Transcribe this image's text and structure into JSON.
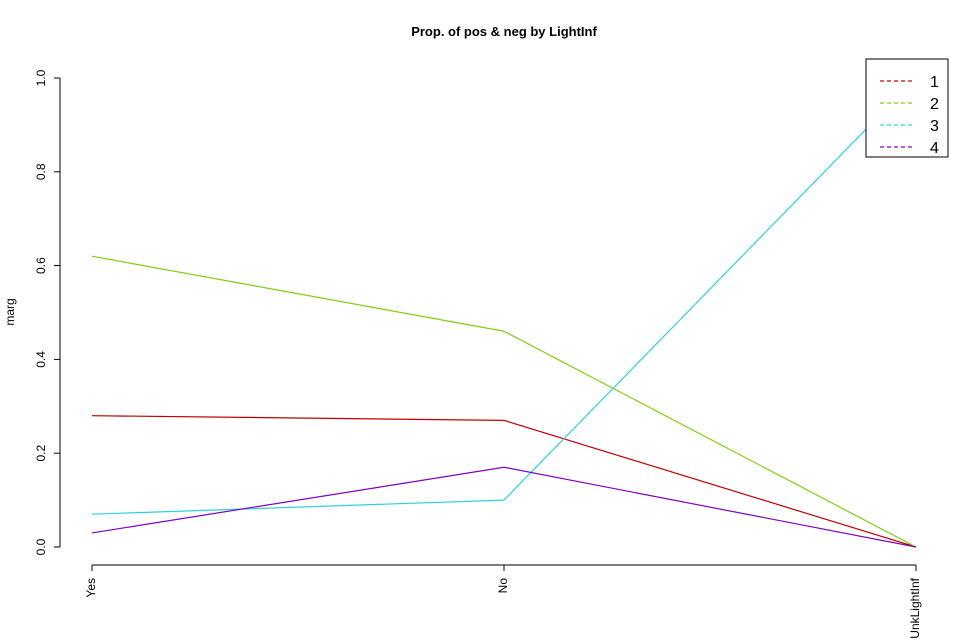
{
  "chart_data": {
    "type": "line",
    "title": "Prop. of pos & neg by LightInf",
    "xlabel": "",
    "ylabel": "marg",
    "categories": [
      "Yes",
      "No",
      "UnkLightInf"
    ],
    "ylim": [
      0,
      1
    ],
    "yticks": [
      "0.0",
      "0.2",
      "0.4",
      "0.6",
      "0.8",
      "1.0"
    ],
    "legend_position": "top-right",
    "series": [
      {
        "name": "1",
        "color": "#c00000",
        "values": [
          0.28,
          0.27,
          0.0
        ]
      },
      {
        "name": "2",
        "color": "#80d010",
        "values": [
          0.62,
          0.46,
          0.0
        ]
      },
      {
        "name": "3",
        "color": "#30d0e0",
        "values": [
          0.07,
          0.1,
          1.0
        ]
      },
      {
        "name": "4",
        "color": "#8000c0",
        "values": [
          0.03,
          0.17,
          0.0
        ]
      }
    ]
  }
}
